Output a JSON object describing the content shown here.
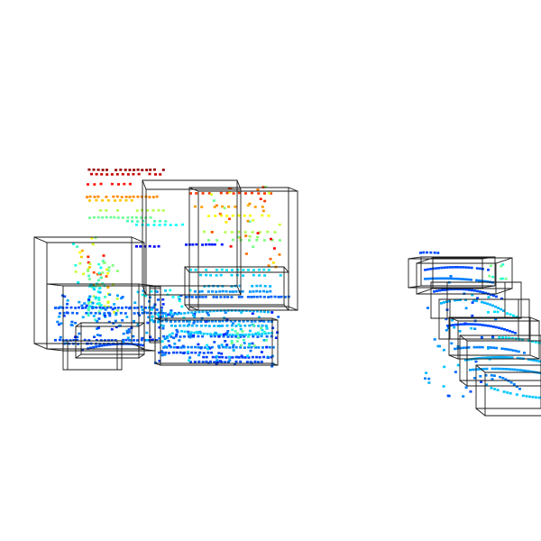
{
  "scene": {
    "background": "#ffffff",
    "box_color": "#1a1a1a",
    "colormap": "jet",
    "colormap_stops": [
      "#00007f",
      "#0000ff",
      "#007fff",
      "#00ffff",
      "#7fff7f",
      "#ffff00",
      "#ff7f00",
      "#ff0000",
      "#7f0000"
    ],
    "bounding_box_count": 16,
    "point_cloud_regions": 2
  }
}
